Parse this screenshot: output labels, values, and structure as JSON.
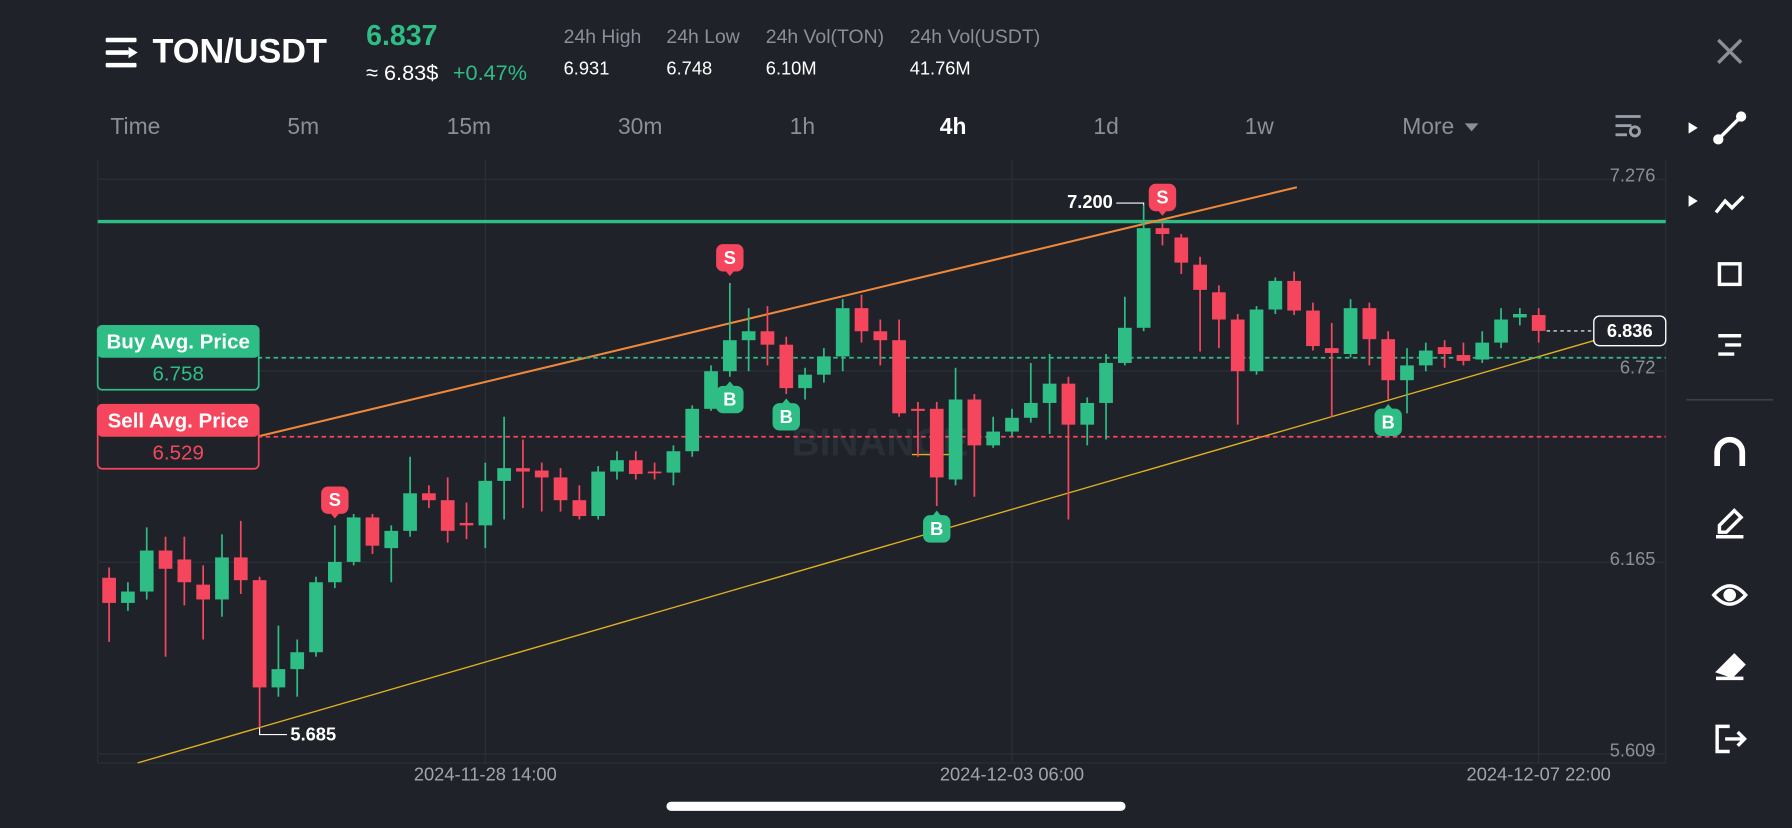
{
  "header": {
    "pair": "TON/USDT",
    "price": "6.837",
    "usd_price": "≈ 6.83$",
    "change": "+0.47%",
    "stats": [
      {
        "label": "24h High",
        "value": "6.931"
      },
      {
        "label": "24h Low",
        "value": "6.748"
      },
      {
        "label": "24h Vol(TON)",
        "value": "6.10M"
      },
      {
        "label": "24h Vol(USDT)",
        "value": "41.76M"
      }
    ]
  },
  "timeframes": [
    {
      "label": "Time",
      "active": false
    },
    {
      "label": "5m",
      "active": false
    },
    {
      "label": "15m",
      "active": false
    },
    {
      "label": "30m",
      "active": false
    },
    {
      "label": "1h",
      "active": false
    },
    {
      "label": "4h",
      "active": true
    },
    {
      "label": "1d",
      "active": false
    },
    {
      "label": "1w",
      "active": false
    },
    {
      "label": "More",
      "active": false
    }
  ],
  "chart_data": {
    "type": "candlestick",
    "watermark": "BINANCE",
    "up_color": "#2ebd85",
    "down_color": "#f6465d",
    "categories": [
      null,
      null,
      null,
      null,
      null,
      null,
      null,
      null,
      null,
      null,
      null,
      null,
      null,
      null,
      null,
      null,
      null,
      null,
      null,
      null,
      "2024-11-28 14:00",
      null,
      null,
      null,
      null,
      null,
      null,
      null,
      null,
      null,
      null,
      null,
      null,
      null,
      null,
      null,
      null,
      null,
      null,
      null,
      null,
      null,
      null,
      null,
      null,
      null,
      null,
      null,
      "2024-12-03 06:00",
      null,
      null,
      null,
      null,
      null,
      null,
      null,
      null,
      null,
      null,
      null,
      null,
      null,
      null,
      null,
      null,
      null,
      null,
      null,
      null,
      null,
      null,
      null,
      null,
      null,
      null,
      null,
      "2024-12-07 22:00"
    ],
    "open": [
      6.12,
      6.047,
      6.08,
      6.199,
      6.173,
      6.1,
      6.057,
      6.179,
      6.113,
      5.802,
      5.855,
      5.904,
      6.107,
      6.166,
      6.295,
      6.206,
      6.256,
      6.365,
      6.345,
      6.279,
      6.272,
      6.401,
      6.438,
      6.431,
      6.411,
      6.345,
      6.299,
      6.428,
      6.461,
      6.428,
      6.425,
      6.487,
      6.61,
      6.719,
      6.809,
      6.835,
      6.796,
      6.67,
      6.709,
      6.762,
      6.902,
      6.835,
      6.809,
      6.61,
      6.61,
      6.405,
      6.637,
      6.504,
      6.544,
      6.584,
      6.627,
      6.683,
      6.564,
      6.627,
      6.743,
      6.845,
      7.134,
      7.107,
      7.028,
      6.948,
      6.869,
      6.719,
      6.898,
      6.981,
      6.895,
      6.786,
      6.769,
      6.902,
      6.812,
      6.693,
      6.736,
      6.789,
      6.766,
      6.753,
      6.802,
      6.875,
      6.882
    ],
    "high": [
      6.15,
      6.107,
      6.266,
      6.239,
      6.239,
      6.156,
      6.246,
      6.285,
      6.123,
      5.981,
      5.941,
      6.123,
      6.272,
      6.305,
      6.305,
      6.272,
      6.471,
      6.388,
      6.411,
      6.338,
      6.454,
      6.587,
      6.521,
      6.454,
      6.438,
      6.388,
      6.444,
      6.487,
      6.487,
      6.454,
      6.504,
      6.62,
      6.736,
      6.975,
      6.902,
      6.908,
      6.819,
      6.729,
      6.786,
      6.928,
      6.941,
      6.869,
      6.869,
      6.63,
      6.63,
      6.729,
      6.653,
      6.587,
      6.61,
      6.743,
      6.769,
      6.703,
      6.643,
      6.769,
      6.935,
      7.2,
      7.15,
      7.117,
      7.051,
      6.968,
      6.885,
      6.908,
      6.991,
      7.008,
      6.918,
      6.859,
      6.928,
      6.918,
      6.835,
      6.786,
      6.802,
      6.809,
      6.802,
      6.835,
      6.902,
      6.902,
      6.902
    ],
    "low": [
      5.934,
      6.024,
      6.057,
      5.891,
      6.04,
      5.941,
      6.007,
      6.073,
      5.685,
      5.775,
      5.775,
      5.891,
      6.09,
      6.156,
      6.189,
      6.107,
      6.239,
      6.322,
      6.222,
      6.232,
      6.206,
      6.289,
      6.322,
      6.312,
      6.312,
      6.289,
      6.289,
      6.405,
      6.405,
      6.405,
      6.388,
      6.471,
      6.604,
      6.703,
      6.719,
      6.736,
      6.653,
      6.637,
      6.686,
      6.719,
      6.802,
      6.736,
      6.587,
      6.471,
      6.328,
      6.388,
      6.355,
      6.497,
      6.531,
      6.57,
      6.537,
      6.289,
      6.504,
      6.521,
      6.736,
      6.835,
      7.084,
      7.001,
      6.776,
      6.786,
      6.564,
      6.709,
      6.885,
      6.882,
      6.779,
      6.587,
      6.759,
      6.736,
      6.637,
      6.597,
      6.719,
      6.729,
      6.736,
      6.743,
      6.786,
      6.852,
      6.802
    ],
    "close": [
      6.047,
      6.08,
      6.199,
      6.146,
      6.107,
      6.057,
      6.179,
      6.113,
      5.802,
      5.855,
      5.904,
      6.107,
      6.166,
      6.295,
      6.213,
      6.256,
      6.365,
      6.345,
      6.256,
      6.272,
      6.401,
      6.438,
      6.428,
      6.411,
      6.345,
      6.299,
      6.428,
      6.461,
      6.421,
      6.425,
      6.487,
      6.61,
      6.719,
      6.809,
      6.835,
      6.796,
      6.67,
      6.709,
      6.762,
      6.902,
      6.835,
      6.809,
      6.597,
      6.604,
      6.411,
      6.637,
      6.504,
      6.544,
      6.584,
      6.627,
      6.683,
      6.564,
      6.627,
      6.743,
      6.845,
      7.134,
      7.117,
      7.034,
      6.955,
      6.869,
      6.719,
      6.898,
      6.981,
      6.895,
      6.792,
      6.772,
      6.902,
      6.812,
      6.693,
      6.736,
      6.779,
      6.769,
      6.749,
      6.802,
      6.869,
      6.885,
      6.836
    ],
    "sell_marks": [
      null,
      null,
      null,
      null,
      null,
      null,
      null,
      null,
      null,
      null,
      null,
      null,
      "S",
      null,
      null,
      null,
      null,
      null,
      null,
      null,
      null,
      null,
      null,
      null,
      null,
      null,
      null,
      null,
      null,
      null,
      null,
      null,
      null,
      "S",
      null,
      null,
      null,
      null,
      null,
      null,
      null,
      null,
      null,
      null,
      null,
      null,
      null,
      null,
      null,
      null,
      null,
      null,
      null,
      null,
      null,
      null,
      "S",
      null,
      null,
      null,
      null,
      null,
      null,
      null,
      null,
      null,
      null,
      null,
      null,
      null,
      null,
      null,
      null,
      null,
      null,
      null,
      null
    ],
    "buy_marks": [
      null,
      null,
      null,
      null,
      null,
      null,
      null,
      null,
      null,
      null,
      null,
      null,
      null,
      null,
      null,
      null,
      null,
      null,
      null,
      null,
      null,
      null,
      null,
      null,
      null,
      null,
      null,
      null,
      null,
      null,
      null,
      null,
      null,
      "B",
      null,
      null,
      "B",
      null,
      null,
      null,
      null,
      null,
      null,
      null,
      "B",
      null,
      null,
      null,
      null,
      null,
      null,
      null,
      null,
      null,
      null,
      null,
      null,
      null,
      null,
      null,
      null,
      null,
      null,
      null,
      null,
      null,
      null,
      null,
      "B",
      null,
      null,
      null,
      null,
      null,
      null,
      null,
      null
    ],
    "high_label": "7.200",
    "low_label": "5.685",
    "last_price": 6.836,
    "buy_avg": {
      "label": "Buy Avg. Price",
      "value": 6.758
    },
    "sell_avg": {
      "label": "Sell Avg. Price",
      "value": 6.529
    },
    "ylim": [
      5.583,
      7.332
    ],
    "yticks": [
      7.276,
      6.72,
      6.165,
      5.609
    ],
    "grid": true
  }
}
